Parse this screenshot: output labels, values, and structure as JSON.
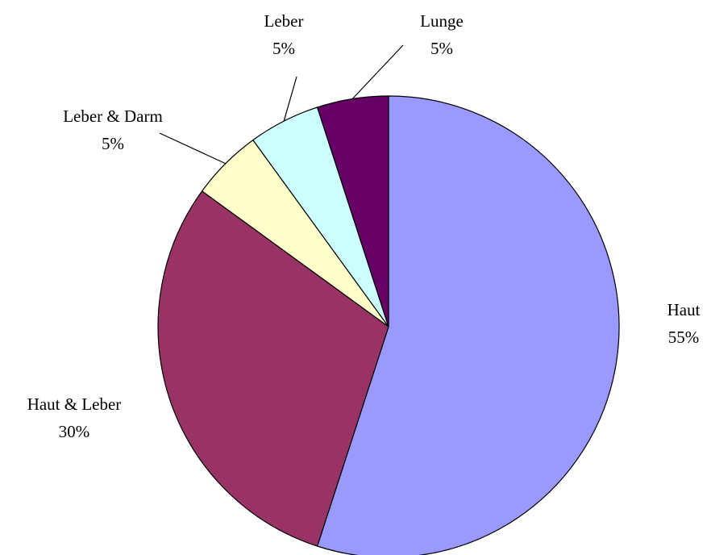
{
  "chart_data": {
    "type": "pie",
    "categories": [
      "Haut",
      "Haut & Leber",
      "Leber & Darm",
      "Leber",
      "Lunge"
    ],
    "values": [
      55,
      30,
      5,
      5,
      5
    ],
    "value_labels": [
      "55%",
      "30%",
      "5%",
      "5%",
      "5%"
    ],
    "colors": [
      "#9999ff",
      "#993366",
      "#ffffcc",
      "#ccffff",
      "#660066"
    ]
  }
}
